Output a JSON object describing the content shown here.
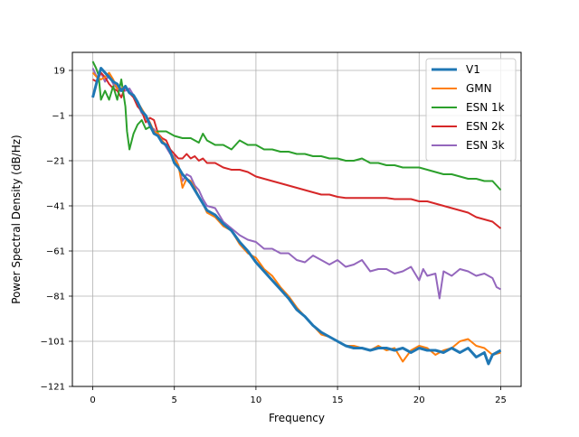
{
  "chart_data": {
    "type": "line",
    "title": "",
    "xlabel": "Frequency",
    "ylabel": "Power Spectral Density (dB/Hz)",
    "xlim": [
      -1.25,
      26.25
    ],
    "ylim": [
      -121,
      27
    ],
    "xticks": [
      0,
      5,
      10,
      15,
      20,
      25
    ],
    "xtick_labels": [
      "0",
      "5",
      "10",
      "15",
      "20",
      "25"
    ],
    "yticks": [
      19,
      -1,
      -21,
      -41,
      -61,
      -81,
      -101,
      -121
    ],
    "ytick_labels": [
      "19",
      "−1",
      "−21",
      "−41",
      "−61",
      "−81",
      "−101",
      "−121"
    ],
    "grid": true,
    "legend_position": "top-right",
    "series": [
      {
        "name": "V1",
        "color": "#1f77b4",
        "width": 3,
        "x": [
          0,
          0.25,
          0.5,
          0.75,
          1,
          1.25,
          1.5,
          1.75,
          2,
          2.25,
          2.5,
          2.75,
          3,
          3.25,
          3.5,
          3.75,
          4,
          4.25,
          4.5,
          4.75,
          5,
          5.25,
          5.5,
          5.75,
          6,
          6.25,
          6.5,
          6.75,
          7,
          7.5,
          8,
          8.5,
          9,
          9.5,
          10,
          10.5,
          11,
          11.5,
          12,
          12.5,
          13,
          13.5,
          14,
          14.5,
          15,
          15.5,
          16,
          16.5,
          17,
          17.5,
          18,
          18.5,
          19,
          19.5,
          20,
          20.5,
          21,
          21.5,
          22,
          22.5,
          23,
          23.5,
          24,
          24.25,
          24.5,
          25
        ],
        "y": [
          7,
          14,
          20,
          18,
          16,
          14,
          13,
          10,
          12,
          9,
          8,
          5,
          1,
          -1,
          -5,
          -9,
          -10,
          -13,
          -14,
          -17,
          -22,
          -24,
          -27,
          -29,
          -31,
          -34,
          -37,
          -40,
          -43,
          -45,
          -49,
          -52,
          -57,
          -61,
          -66,
          -70,
          -74,
          -78,
          -82,
          -87,
          -90,
          -94,
          -97,
          -99,
          -101,
          -103,
          -104,
          -104,
          -105,
          -104,
          -104,
          -105,
          -104,
          -106,
          -104,
          -105,
          -105,
          -106,
          -104,
          -106,
          -104,
          -108,
          -106,
          -111,
          -107,
          -105
        ]
      },
      {
        "name": "GMN",
        "color": "#ff7f0e",
        "width": 2,
        "x": [
          0,
          0.25,
          0.5,
          0.75,
          1,
          1.25,
          1.5,
          1.75,
          2,
          2.25,
          2.5,
          2.75,
          3,
          3.25,
          3.5,
          3.75,
          4,
          4.25,
          4.5,
          4.75,
          5,
          5.25,
          5.5,
          5.75,
          6,
          6.25,
          6.5,
          6.75,
          7,
          7.5,
          8,
          8.5,
          9,
          9.5,
          10,
          10.5,
          11,
          11.5,
          12,
          12.5,
          13,
          13.5,
          14,
          14.5,
          15,
          15.5,
          16,
          16.5,
          17,
          17.5,
          18,
          18.5,
          19,
          19.5,
          20,
          20.5,
          21,
          21.5,
          22,
          22.5,
          23,
          23.5,
          24,
          24.5,
          25
        ],
        "y": [
          18,
          16,
          15,
          16,
          18,
          15,
          11,
          11,
          12,
          9,
          8,
          5,
          2,
          -1,
          -4,
          -8,
          -9,
          -12,
          -14,
          -17,
          -20,
          -23,
          -33,
          -29,
          -30,
          -33,
          -37,
          -40,
          -44,
          -46,
          -50,
          -52,
          -58,
          -62,
          -64,
          -69,
          -72,
          -77,
          -81,
          -86,
          -90,
          -94,
          -98,
          -99,
          -101,
          -103,
          -103,
          -104,
          -105,
          -103,
          -105,
          -104,
          -110,
          -105,
          -103,
          -104,
          -107,
          -105,
          -104,
          -101,
          -100,
          -103,
          -104,
          -107,
          -106
        ]
      },
      {
        "name": "ESN 1k",
        "color": "#2ca02c",
        "width": 2,
        "x": [
          0,
          0.2,
          0.35,
          0.5,
          0.75,
          1,
          1.25,
          1.5,
          1.75,
          2,
          2.1,
          2.25,
          2.5,
          2.75,
          3,
          3.25,
          3.5,
          3.75,
          4,
          4.5,
          5,
          5.5,
          6,
          6.5,
          6.75,
          7,
          7.5,
          8,
          8.5,
          9,
          9.5,
          10,
          10.5,
          11,
          11.5,
          12,
          12.5,
          13,
          13.5,
          14,
          14.5,
          15,
          15.5,
          16,
          16.5,
          17,
          17.5,
          18,
          18.5,
          19,
          19.5,
          20,
          20.5,
          21,
          21.5,
          22,
          22.5,
          23,
          23.5,
          24,
          24.5,
          25
        ],
        "y": [
          23,
          20,
          17,
          6,
          10,
          6,
          12,
          6,
          15,
          3,
          -8,
          -16,
          -9,
          -5,
          -3,
          -7,
          -6,
          -9,
          -8,
          -8,
          -10,
          -11,
          -11,
          -13,
          -9,
          -12,
          -14,
          -14,
          -16,
          -12,
          -14,
          -14,
          -16,
          -16,
          -17,
          -17,
          -18,
          -18,
          -19,
          -19,
          -20,
          -20,
          -21,
          -21,
          -20,
          -22,
          -22,
          -23,
          -23,
          -24,
          -24,
          -24,
          -25,
          -26,
          -27,
          -27,
          -28,
          -29,
          -29,
          -30,
          -30,
          -34
        ]
      },
      {
        "name": "ESN 2k",
        "color": "#d62728",
        "width": 2,
        "x": [
          0,
          0.25,
          0.5,
          0.75,
          1,
          1.25,
          1.5,
          1.75,
          2,
          2.25,
          2.5,
          2.75,
          3,
          3.25,
          3.5,
          3.75,
          4,
          4.25,
          4.5,
          4.75,
          5,
          5.25,
          5.5,
          5.75,
          6,
          6.25,
          6.5,
          6.75,
          7,
          7.5,
          8,
          8.5,
          9,
          9.5,
          10,
          10.5,
          11,
          11.5,
          12,
          12.5,
          13,
          13.5,
          14,
          14.5,
          15,
          15.5,
          16,
          16.5,
          17,
          17.5,
          18,
          18.5,
          19,
          19.5,
          20,
          20.5,
          21,
          21.5,
          22,
          22.5,
          23,
          23.5,
          24,
          24.5,
          25
        ],
        "y": [
          15,
          14,
          18,
          16,
          13,
          11,
          10,
          7,
          12,
          9,
          7,
          3,
          1,
          -4,
          -2,
          -3,
          -9,
          -11,
          -12,
          -16,
          -18,
          -20,
          -20,
          -18,
          -20,
          -19,
          -21,
          -20,
          -22,
          -22,
          -24,
          -25,
          -25,
          -26,
          -28,
          -29,
          -30,
          -31,
          -32,
          -33,
          -34,
          -35,
          -36,
          -36,
          -37,
          -37.5,
          -37.5,
          -37.5,
          -37.5,
          -37.5,
          -37.5,
          -38,
          -38,
          -38,
          -39,
          -39,
          -40,
          -41,
          -42,
          -43,
          -44,
          -46,
          -47,
          -48,
          -51
        ]
      },
      {
        "name": "ESN 3k",
        "color": "#9467bd",
        "width": 2,
        "x": [
          0,
          0.25,
          0.5,
          0.75,
          1,
          1.25,
          1.5,
          1.75,
          2,
          2.25,
          2.5,
          2.75,
          3,
          3.25,
          3.5,
          3.75,
          4,
          4.25,
          4.5,
          4.75,
          5,
          5.25,
          5.5,
          5.75,
          6,
          6.25,
          6.5,
          6.75,
          7,
          7.5,
          8,
          8.5,
          9,
          9.5,
          10,
          10.5,
          11,
          11.5,
          12,
          12.5,
          13,
          13.5,
          14,
          14.5,
          15,
          15.5,
          16,
          16.5,
          17,
          17.5,
          18,
          18.5,
          19,
          19.5,
          20,
          20.25,
          20.5,
          21,
          21.25,
          21.5,
          22,
          22.5,
          23,
          23.5,
          24,
          24.5,
          24.75,
          25
        ],
        "y": [
          20,
          16,
          18,
          14,
          17,
          13,
          11,
          10,
          10,
          11,
          8,
          4,
          0,
          -1,
          -6,
          -7,
          -10,
          -12,
          -15,
          -18,
          -19,
          -23,
          -30,
          -27,
          -28,
          -32,
          -34,
          -38,
          -41,
          -42,
          -48,
          -51,
          -54,
          -56,
          -57,
          -60,
          -60,
          -62,
          -62,
          -65,
          -66,
          -63,
          -65,
          -67,
          -65,
          -68,
          -67,
          -65,
          -70,
          -69,
          -69,
          -71,
          -70,
          -68,
          -74,
          -69,
          -72,
          -71,
          -82,
          -70,
          -72,
          -69,
          -70,
          -72,
          -71,
          -73,
          -77,
          -78
        ]
      }
    ]
  }
}
